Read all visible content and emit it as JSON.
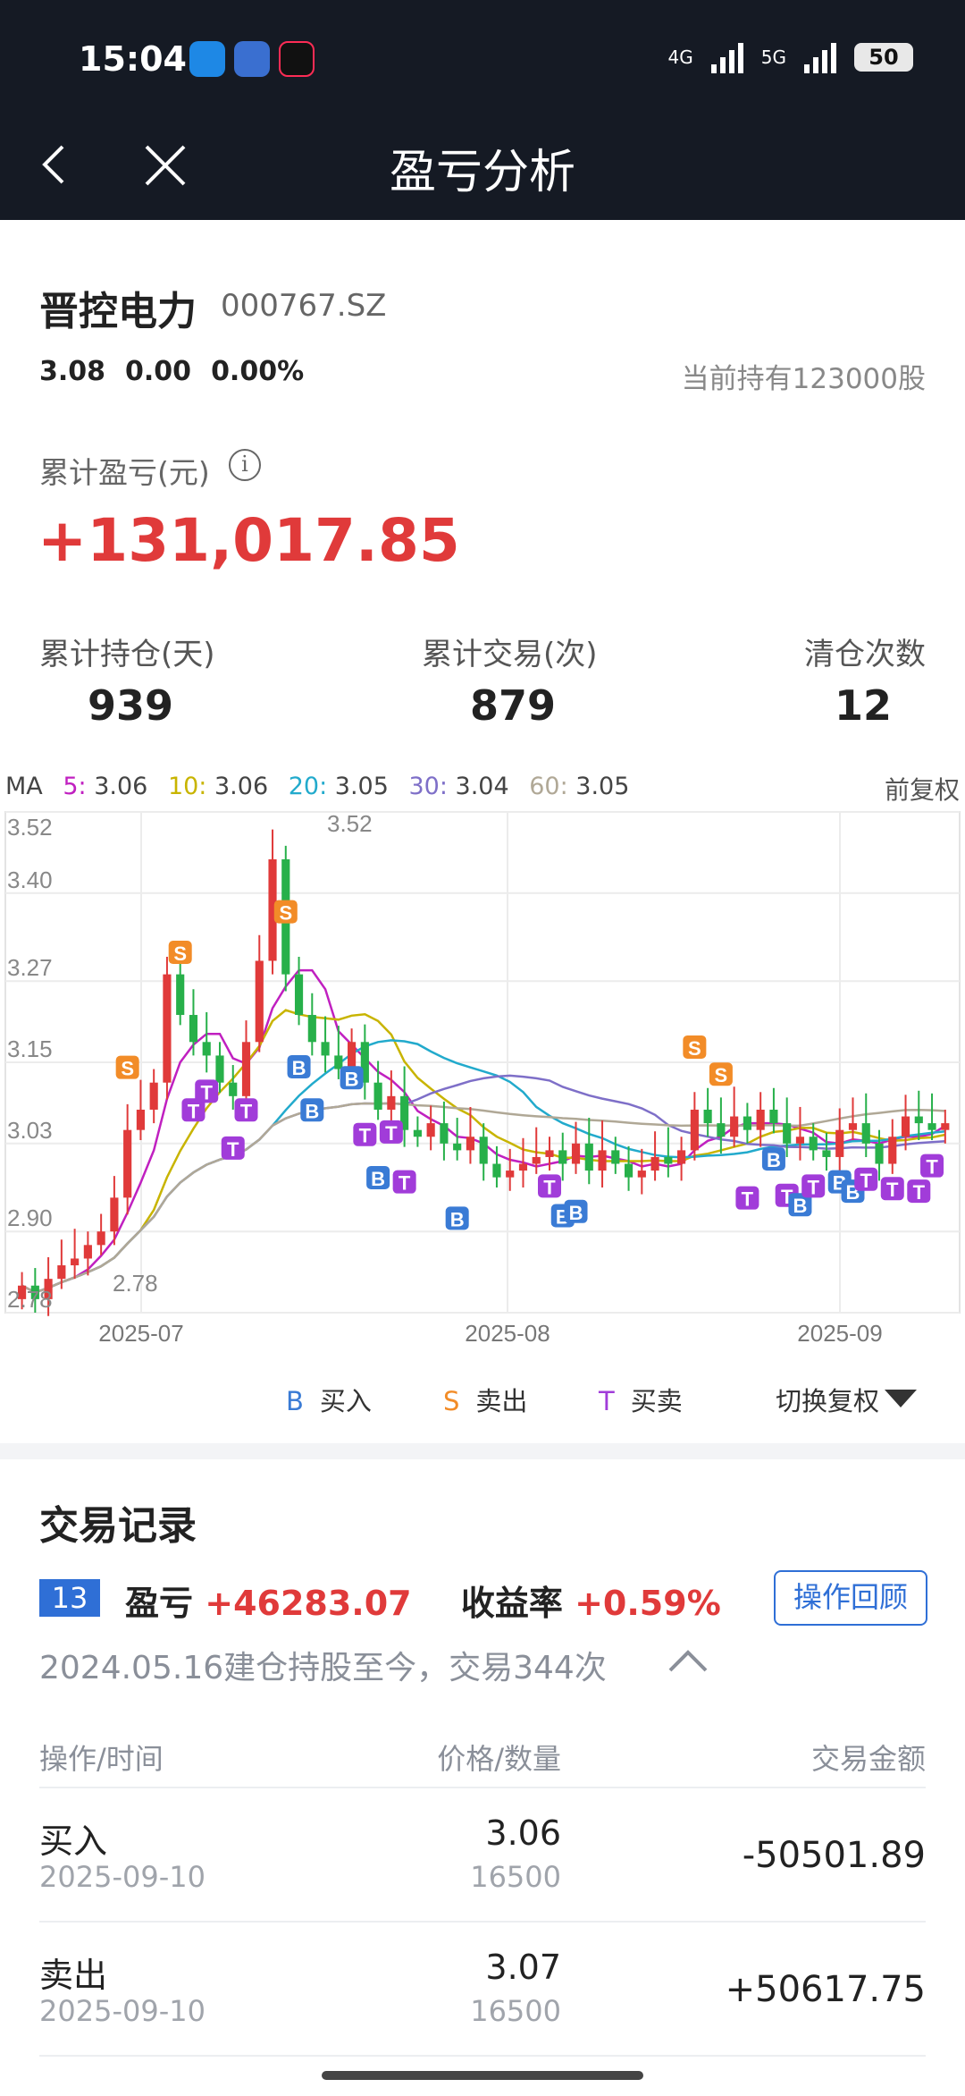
{
  "status": {
    "time": "15:04",
    "net1": "4G",
    "net2": "5G",
    "battery": "50"
  },
  "header": {
    "title": "盈亏分析"
  },
  "stock": {
    "name": "晋控电力",
    "code": "000767.SZ",
    "price": "3.08",
    "change": "0.00",
    "change_pct": "0.00%",
    "holding": "当前持有123000股"
  },
  "summary": {
    "cum_label": "累计盈亏(元)",
    "info_icon": "i",
    "cum_value": "+131,017.85",
    "stats": [
      {
        "label": "累计持仓(天)",
        "value": "939"
      },
      {
        "label": "累计交易(次)",
        "value": "879"
      },
      {
        "label": "清仓次数",
        "value": "12"
      }
    ]
  },
  "chart": {
    "ma_prefix": "MA",
    "ma": [
      {
        "label": "5:",
        "value": "3.06",
        "color": "#c020c0"
      },
      {
        "label": "10:",
        "value": "3.06",
        "color": "#c8b400"
      },
      {
        "label": "20:",
        "value": "3.05",
        "color": "#22aacc"
      },
      {
        "label": "30:",
        "value": "3.04",
        "color": "#7e6fc8"
      },
      {
        "label": "60:",
        "value": "3.05",
        "color": "#b0a896"
      }
    ],
    "adjust_label": "前复权",
    "legend": {
      "b_mark": "B",
      "b_text": "买入",
      "s_mark": "S",
      "s_text": "卖出",
      "t_mark": "T",
      "t_text": "买卖"
    },
    "switch_label": "切换复权",
    "colors": {
      "up": "#e03a3a",
      "down": "#27b04a",
      "buy": "#3a7bd5",
      "sell": "#f28c28",
      "tt": "#a13cd9"
    }
  },
  "chart_data": {
    "type": "candlestick",
    "y_ticks": [
      "3.52",
      "3.40",
      "3.27",
      "3.15",
      "3.03",
      "2.90",
      "2.78"
    ],
    "ylim": [
      2.78,
      3.52
    ],
    "x_ticks": [
      "2025-07",
      "2025-08",
      "2025-09"
    ],
    "max_label": "3.52",
    "min_label": "2.78"
  },
  "records": {
    "title": "交易记录",
    "badge": "13",
    "pl_label": "盈亏",
    "pl_value": "+46283.07",
    "rate_label": "收益率",
    "rate_value": "+0.59%",
    "review_btn": "操作回顾",
    "since": "2024.05.16建仓持股至今，交易344次",
    "headers": {
      "op": "操作/时间",
      "price": "价格/数量",
      "amount": "交易金额"
    },
    "rows": [
      {
        "op": "买入",
        "date": "2025-09-10",
        "price": "3.06",
        "qty": "16500",
        "amount": "-50501.89"
      },
      {
        "op": "卖出",
        "date": "2025-09-10",
        "price": "3.07",
        "qty": "16500",
        "amount": "+50617.75"
      }
    ]
  }
}
